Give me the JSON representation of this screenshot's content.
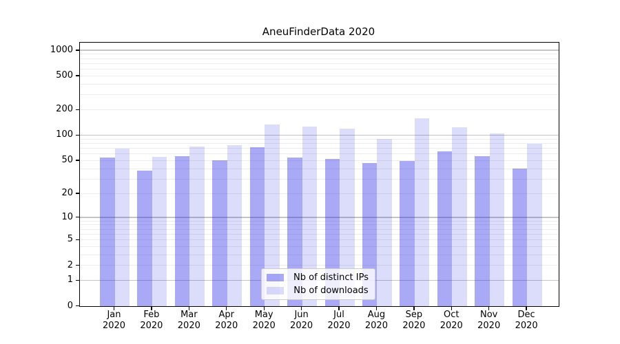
{
  "chart_data": {
    "type": "bar",
    "title": "AneuFinderData 2020",
    "year": "2020",
    "categories": [
      "Jan 2020",
      "Feb 2020",
      "Mar 2020",
      "Apr 2020",
      "May 2020",
      "Jun 2020",
      "Jul 2020",
      "Aug 2020",
      "Sep 2020",
      "Oct 2020",
      "Nov 2020",
      "Dec 2020"
    ],
    "months": [
      "Jan",
      "Feb",
      "Mar",
      "Apr",
      "May",
      "Jun",
      "Jul",
      "Aug",
      "Sep",
      "Oct",
      "Nov",
      "Dec"
    ],
    "series": [
      {
        "key": "ips",
        "name": "Nb of distinct IPs",
        "color": "rgba(22,22,228,0.37)",
        "values": [
          54,
          38,
          56,
          50,
          72,
          54,
          52,
          47,
          49,
          64,
          56,
          40
        ]
      },
      {
        "key": "downloads",
        "name": "Nb of downloads",
        "color": "rgba(22,22,228,0.15)",
        "values": [
          69,
          55,
          73,
          77,
          134,
          127,
          120,
          90,
          159,
          124,
          105,
          79
        ]
      }
    ],
    "y_scale": "log1p",
    "ylim": [
      0,
      1230
    ],
    "y_ticks": [
      0,
      1,
      2,
      5,
      10,
      20,
      50,
      100,
      200,
      500,
      1000
    ],
    "y_major_gridlines": [
      1,
      10,
      100,
      1000
    ],
    "y_minor_gridlines": [
      2,
      3,
      4,
      5,
      6,
      7,
      8,
      9,
      20,
      30,
      40,
      50,
      60,
      70,
      80,
      90,
      200,
      300,
      400,
      500,
      600,
      700,
      800,
      900
    ],
    "grid": {
      "major_color": "#c4c4c4",
      "minor_color": "#ececec"
    },
    "legend_position": "lower center",
    "xlabel": "",
    "ylabel": ""
  }
}
